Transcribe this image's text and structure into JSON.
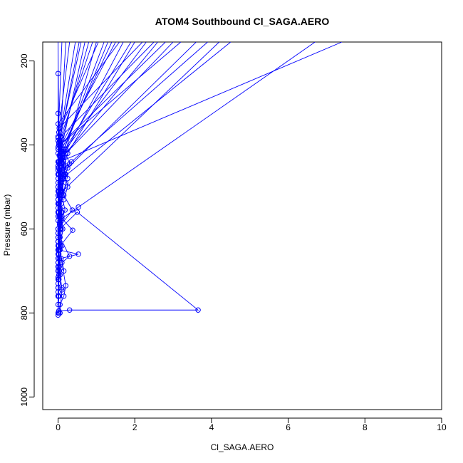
{
  "chart_data": {
    "type": "line",
    "title": "ATOM4 Southbound Cl_SAGA.AERO",
    "xlabel": "Cl_SAGA.AERO",
    "ylabel": "Pressure (mbar)",
    "xlim": [
      -0.4,
      10.0
    ],
    "ylim": [
      1030,
      155
    ],
    "y_axis_reversed": true,
    "xticks": [
      0,
      2,
      4,
      6,
      8,
      10
    ],
    "yticks": [
      200,
      400,
      600,
      800,
      1000
    ],
    "grid": false,
    "legend": "none",
    "series_color": "#0000ff",
    "marker": "open-circle",
    "series": [
      {
        "values": [
          {
            "x": 0.02,
            "y": 795
          },
          {
            "x": 0.3,
            "y": 793
          },
          {
            "x": 3.65,
            "y": 793
          },
          {
            "x": 0.5,
            "y": 560
          },
          {
            "x": 0.05,
            "y": 600
          },
          {
            "x": 0.03,
            "y": 650
          },
          {
            "x": 0.53,
            "y": 660
          },
          {
            "x": 0.08,
            "y": 670
          },
          {
            "x": 0.2,
            "y": 735
          },
          {
            "x": 0.15,
            "y": 760
          },
          {
            "x": 0.05,
            "y": 780
          },
          {
            "x": 0.02,
            "y": 800
          }
        ]
      },
      {
        "values": [
          {
            "x": 0.0,
            "y": 805
          },
          {
            "x": 0.02,
            "y": 760
          },
          {
            "x": 0.0,
            "y": 715
          },
          {
            "x": 0.03,
            "y": 670
          },
          {
            "x": 0.0,
            "y": 620
          },
          {
            "x": 0.04,
            "y": 585
          },
          {
            "x": 0.0,
            "y": 540
          },
          {
            "x": 0.05,
            "y": 505
          },
          {
            "x": 0.02,
            "y": 470
          },
          {
            "x": 0.05,
            "y": 440
          },
          {
            "x": 7.4,
            "y": 155
          }
        ]
      },
      {
        "values": [
          {
            "x": 0.05,
            "y": 800
          },
          {
            "x": 0.1,
            "y": 745
          },
          {
            "x": 0.03,
            "y": 690
          },
          {
            "x": 0.06,
            "y": 640
          },
          {
            "x": 0.38,
            "y": 603
          },
          {
            "x": 0.1,
            "y": 575
          },
          {
            "x": 0.53,
            "y": 548
          },
          {
            "x": 6.7,
            "y": 155
          }
        ]
      },
      {
        "values": [
          {
            "x": 0.0,
            "y": 800
          },
          {
            "x": 0.0,
            "y": 740
          },
          {
            "x": 0.0,
            "y": 700
          },
          {
            "x": 0.02,
            "y": 650
          },
          {
            "x": 0.0,
            "y": 600
          },
          {
            "x": 0.37,
            "y": 555
          },
          {
            "x": 0.15,
            "y": 520
          },
          {
            "x": 0.1,
            "y": 480
          },
          {
            "x": 4.5,
            "y": 155
          }
        ]
      },
      {
        "values": [
          {
            "x": 0.0,
            "y": 230
          },
          {
            "x": 0.0,
            "y": 325
          },
          {
            "x": 0.0,
            "y": 383
          },
          {
            "x": 0.0,
            "y": 405
          },
          {
            "x": 0.0,
            "y": 440
          },
          {
            "x": 0.0,
            "y": 470
          },
          {
            "x": 0.05,
            "y": 500
          },
          {
            "x": 0.0,
            "y": 520
          },
          {
            "x": 4.2,
            "y": 155
          }
        ]
      },
      {
        "values": [
          {
            "x": 0.0,
            "y": 780
          },
          {
            "x": 0.02,
            "y": 720
          },
          {
            "x": 0.0,
            "y": 650
          },
          {
            "x": 0.05,
            "y": 580
          },
          {
            "x": 0.18,
            "y": 555
          },
          {
            "x": 0.1,
            "y": 520
          },
          {
            "x": 0.15,
            "y": 480
          },
          {
            "x": 0.25,
            "y": 455
          },
          {
            "x": 3.6,
            "y": 155
          }
        ]
      },
      {
        "values": [
          {
            "x": 0.1,
            "y": 740
          },
          {
            "x": 0.0,
            "y": 690
          },
          {
            "x": 0.1,
            "y": 640
          },
          {
            "x": 0.05,
            "y": 600
          },
          {
            "x": 0.1,
            "y": 560
          },
          {
            "x": 0.05,
            "y": 520
          },
          {
            "x": 0.15,
            "y": 470
          },
          {
            "x": 0.12,
            "y": 430
          },
          {
            "x": 0.05,
            "y": 400
          },
          {
            "x": 3.2,
            "y": 155
          }
        ]
      },
      {
        "values": [
          {
            "x": 0.0,
            "y": 760
          },
          {
            "x": 0.03,
            "y": 700
          },
          {
            "x": 0.0,
            "y": 630
          },
          {
            "x": 0.08,
            "y": 560
          },
          {
            "x": 0.05,
            "y": 500
          },
          {
            "x": 0.1,
            "y": 440
          },
          {
            "x": 0.05,
            "y": 400
          },
          {
            "x": 2.8,
            "y": 155
          }
        ]
      },
      {
        "values": [
          {
            "x": 0.02,
            "y": 720
          },
          {
            "x": 0.0,
            "y": 660
          },
          {
            "x": 0.05,
            "y": 610
          },
          {
            "x": 0.02,
            "y": 560
          },
          {
            "x": 0.08,
            "y": 510
          },
          {
            "x": 0.04,
            "y": 460
          },
          {
            "x": 0.1,
            "y": 420
          },
          {
            "x": 0.08,
            "y": 380
          },
          {
            "x": 2.5,
            "y": 155
          }
        ]
      },
      {
        "values": [
          {
            "x": 0.0,
            "y": 750
          },
          {
            "x": 0.0,
            "y": 690
          },
          {
            "x": 0.0,
            "y": 630
          },
          {
            "x": 0.0,
            "y": 570
          },
          {
            "x": 0.02,
            "y": 510
          },
          {
            "x": 0.0,
            "y": 450
          },
          {
            "x": 0.05,
            "y": 405
          },
          {
            "x": 0.03,
            "y": 360
          },
          {
            "x": 2.2,
            "y": 155
          }
        ]
      },
      {
        "values": [
          {
            "x": 0.05,
            "y": 710
          },
          {
            "x": 0.0,
            "y": 650
          },
          {
            "x": 0.04,
            "y": 590
          },
          {
            "x": 0.0,
            "y": 530
          },
          {
            "x": 0.06,
            "y": 480
          },
          {
            "x": 0.05,
            "y": 430
          },
          {
            "x": 1.9,
            "y": 155
          }
        ]
      },
      {
        "values": [
          {
            "x": 0.0,
            "y": 700
          },
          {
            "x": 0.02,
            "y": 640
          },
          {
            "x": 0.0,
            "y": 580
          },
          {
            "x": 0.03,
            "y": 520
          },
          {
            "x": 0.0,
            "y": 460
          },
          {
            "x": 0.02,
            "y": 400
          },
          {
            "x": 0.0,
            "y": 350
          },
          {
            "x": 1.6,
            "y": 155
          }
        ]
      },
      {
        "values": [
          {
            "x": 0.0,
            "y": 680
          },
          {
            "x": 0.0,
            "y": 610
          },
          {
            "x": 0.0,
            "y": 550
          },
          {
            "x": 0.0,
            "y": 490
          },
          {
            "x": 0.02,
            "y": 440
          },
          {
            "x": 1.3,
            "y": 155
          }
        ]
      },
      {
        "values": [
          {
            "x": 0.03,
            "y": 690
          },
          {
            "x": 0.0,
            "y": 630
          },
          {
            "x": 0.05,
            "y": 570
          },
          {
            "x": 0.0,
            "y": 510
          },
          {
            "x": 0.04,
            "y": 460
          },
          {
            "x": 0.0,
            "y": 410
          },
          {
            "x": 0.02,
            "y": 370
          },
          {
            "x": 1.05,
            "y": 155
          }
        ]
      },
      {
        "values": [
          {
            "x": 0.0,
            "y": 730
          },
          {
            "x": 0.0,
            "y": 670
          },
          {
            "x": 0.0,
            "y": 600
          },
          {
            "x": 0.0,
            "y": 540
          },
          {
            "x": 0.0,
            "y": 480
          },
          {
            "x": 0.0,
            "y": 420
          },
          {
            "x": 0.8,
            "y": 155
          }
        ]
      },
      {
        "values": [
          {
            "x": 0.0,
            "y": 720
          },
          {
            "x": 0.02,
            "y": 660
          },
          {
            "x": 0.0,
            "y": 600
          },
          {
            "x": 0.02,
            "y": 540
          },
          {
            "x": 0.0,
            "y": 470
          },
          {
            "x": 0.02,
            "y": 400
          },
          {
            "x": 0.55,
            "y": 155
          }
        ]
      },
      {
        "values": [
          {
            "x": 0.0,
            "y": 740
          },
          {
            "x": 0.0,
            "y": 680
          },
          {
            "x": 0.0,
            "y": 620
          },
          {
            "x": 0.0,
            "y": 560
          },
          {
            "x": 0.0,
            "y": 500
          },
          {
            "x": 0.0,
            "y": 440
          },
          {
            "x": 0.0,
            "y": 380
          },
          {
            "x": 0.3,
            "y": 155
          }
        ]
      },
      {
        "values": [
          {
            "x": 0.0,
            "y": 760
          },
          {
            "x": 0.0,
            "y": 690
          },
          {
            "x": 0.0,
            "y": 610
          },
          {
            "x": 0.0,
            "y": 530
          },
          {
            "x": 0.0,
            "y": 450
          },
          {
            "x": 0.0,
            "y": 390
          },
          {
            "x": 0.1,
            "y": 155
          }
        ]
      },
      {
        "values": [
          {
            "x": 0.02,
            "y": 710
          },
          {
            "x": 0.0,
            "y": 640
          },
          {
            "x": 0.03,
            "y": 570
          },
          {
            "x": 0.0,
            "y": 500
          },
          {
            "x": 0.02,
            "y": 440
          },
          {
            "x": 0.0,
            "y": 155
          }
        ]
      },
      {
        "values": [
          {
            "x": 0.15,
            "y": 700
          },
          {
            "x": 0.05,
            "y": 650
          },
          {
            "x": 0.12,
            "y": 600
          },
          {
            "x": 0.08,
            "y": 540
          },
          {
            "x": 0.2,
            "y": 490
          },
          {
            "x": 0.15,
            "y": 450
          },
          {
            "x": 0.25,
            "y": 420
          },
          {
            "x": 2.0,
            "y": 155
          }
        ]
      },
      {
        "values": [
          {
            "x": 0.1,
            "y": 680
          },
          {
            "x": 0.3,
            "y": 665
          },
          {
            "x": 0.05,
            "y": 620
          },
          {
            "x": 0.1,
            "y": 570
          },
          {
            "x": 0.05,
            "y": 520
          },
          {
            "x": 0.2,
            "y": 470
          },
          {
            "x": 0.1,
            "y": 430
          },
          {
            "x": 3.0,
            "y": 155
          }
        ]
      },
      {
        "values": [
          {
            "x": 0.08,
            "y": 600
          },
          {
            "x": 0.05,
            "y": 550
          },
          {
            "x": 0.12,
            "y": 510
          },
          {
            "x": 0.06,
            "y": 470
          },
          {
            "x": 0.14,
            "y": 440
          },
          {
            "x": 0.1,
            "y": 410
          },
          {
            "x": 1.4,
            "y": 155
          }
        ]
      },
      {
        "values": [
          {
            "x": 0.0,
            "y": 560
          },
          {
            "x": 0.05,
            "y": 510
          },
          {
            "x": 0.02,
            "y": 470
          },
          {
            "x": 0.07,
            "y": 430
          },
          {
            "x": 0.04,
            "y": 390
          },
          {
            "x": 0.9,
            "y": 155
          }
        ]
      },
      {
        "values": [
          {
            "x": 0.03,
            "y": 540
          },
          {
            "x": 0.08,
            "y": 490
          },
          {
            "x": 0.05,
            "y": 450
          },
          {
            "x": 0.1,
            "y": 420
          },
          {
            "x": 0.06,
            "y": 380
          },
          {
            "x": 0.6,
            "y": 155
          }
        ]
      },
      {
        "values": [
          {
            "x": 0.15,
            "y": 530
          },
          {
            "x": 0.25,
            "y": 500
          },
          {
            "x": 0.18,
            "y": 470
          },
          {
            "x": 0.3,
            "y": 445
          },
          {
            "x": 0.2,
            "y": 420
          },
          {
            "x": 2.6,
            "y": 155
          }
        ]
      },
      {
        "values": [
          {
            "x": 0.05,
            "y": 490
          },
          {
            "x": 0.12,
            "y": 460
          },
          {
            "x": 0.08,
            "y": 435
          },
          {
            "x": 0.15,
            "y": 410
          },
          {
            "x": 1.2,
            "y": 155
          }
        ]
      },
      {
        "values": [
          {
            "x": 0.02,
            "y": 510
          },
          {
            "x": 0.06,
            "y": 475
          },
          {
            "x": 0.03,
            "y": 445
          },
          {
            "x": 0.07,
            "y": 415
          },
          {
            "x": 0.7,
            "y": 155
          }
        ]
      },
      {
        "values": [
          {
            "x": 0.1,
            "y": 470
          },
          {
            "x": 0.2,
            "y": 450
          },
          {
            "x": 0.12,
            "y": 430
          },
          {
            "x": 1.7,
            "y": 155
          }
        ]
      },
      {
        "values": [
          {
            "x": 0.0,
            "y": 455
          },
          {
            "x": 0.05,
            "y": 425
          },
          {
            "x": 0.02,
            "y": 395
          },
          {
            "x": 0.45,
            "y": 155
          }
        ]
      },
      {
        "values": [
          {
            "x": 0.25,
            "y": 480
          },
          {
            "x": 0.15,
            "y": 455
          },
          {
            "x": 0.35,
            "y": 440
          },
          {
            "x": 3.9,
            "y": 155
          }
        ]
      },
      {
        "values": [
          {
            "x": 0.05,
            "y": 440
          },
          {
            "x": 0.1,
            "y": 415
          },
          {
            "x": 0.06,
            "y": 390
          },
          {
            "x": 0.2,
            "y": 155
          }
        ]
      },
      {
        "values": [
          {
            "x": 0.08,
            "y": 450
          },
          {
            "x": 0.15,
            "y": 430
          },
          {
            "x": 1.0,
            "y": 155
          }
        ]
      },
      {
        "values": [
          {
            "x": 0.12,
            "y": 430
          },
          {
            "x": 0.2,
            "y": 410
          },
          {
            "x": 2.3,
            "y": 155
          }
        ]
      },
      {
        "values": [
          {
            "x": 0.03,
            "y": 425
          },
          {
            "x": 0.08,
            "y": 400
          },
          {
            "x": 1.5,
            "y": 155
          }
        ]
      }
    ]
  }
}
